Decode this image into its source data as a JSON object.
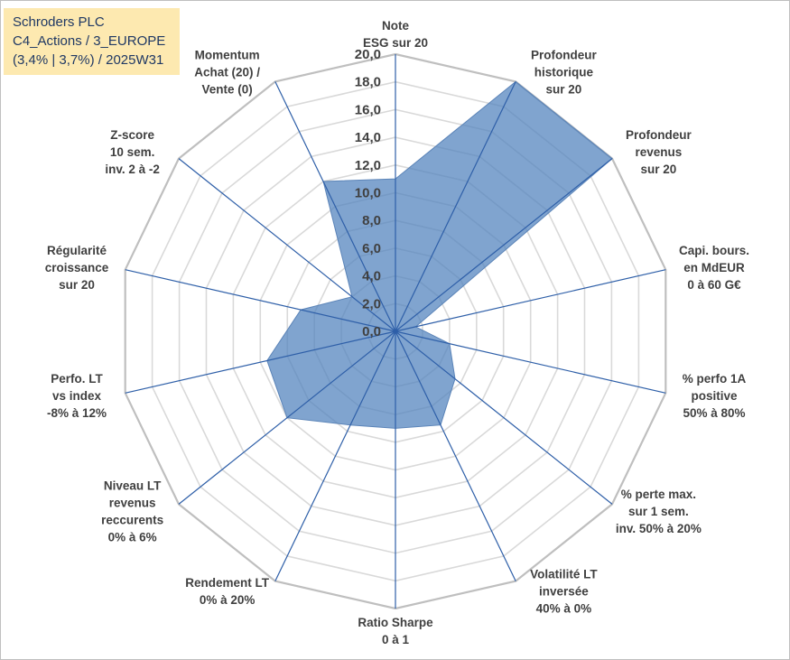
{
  "header": {
    "line1": "Schroders PLC",
    "line2": "C4_Actions / 3_EUROPE",
    "line3": "(3,4% | 3,7%) / 2025W31"
  },
  "colors": {
    "fill": "#4f81bd",
    "axis": "#2e5fa8",
    "grid": "#d9d9d9",
    "outer": "#bfbfbf"
  },
  "chart_data": {
    "type": "radar",
    "rmin": 0,
    "rmax": 20,
    "tick_step": 2,
    "tick_labels": [
      "0,0",
      "2,0",
      "4,0",
      "6,0",
      "8,0",
      "10,0",
      "12,0",
      "14,0",
      "16,0",
      "18,0",
      "20,0"
    ],
    "axes": [
      {
        "label": [
          "Note",
          "ESG sur 20"
        ],
        "value": 11.0
      },
      {
        "label": [
          "Profondeur",
          "historique",
          "sur 20"
        ],
        "value": 20.0
      },
      {
        "label": [
          "Profondeur",
          "revenus",
          "sur 20"
        ],
        "value": 20.0
      },
      {
        "label": [
          "Capi. bours.",
          "en MdEUR",
          "0 à 60 G€"
        ],
        "value": 1.5
      },
      {
        "label": [
          "% perfo 1A",
          "positive",
          "50% à 80%"
        ],
        "value": 4.0
      },
      {
        "label": [
          "% perte max.",
          "sur 1 sem.",
          "inv. 50% à 20%"
        ],
        "value": 5.5
      },
      {
        "label": [
          "Volatilité LT",
          "inversée",
          "40% à 0%"
        ],
        "value": 7.5
      },
      {
        "label": [
          "Ratio Sharpe",
          "0 à 1"
        ],
        "value": 7.0
      },
      {
        "label": [
          "Rendement LT",
          "0% à 20%"
        ],
        "value": 7.5
      },
      {
        "label": [
          "Niveau LT",
          "revenus",
          "reccurents",
          "0% à 6%"
        ],
        "value": 10.0
      },
      {
        "label": [
          "Perfo. LT",
          "vs index",
          "-8% à 12%"
        ],
        "value": 9.5
      },
      {
        "label": [
          "Régularité",
          "croissance",
          "sur 20"
        ],
        "value": 7.0
      },
      {
        "label": [
          "Z-score",
          "10 sem.",
          "inv. 2 à -2"
        ],
        "value": 4.0
      },
      {
        "label": [
          "Momentum",
          "Achat (20) /",
          "Vente (0)"
        ],
        "value": 12.0
      }
    ]
  }
}
